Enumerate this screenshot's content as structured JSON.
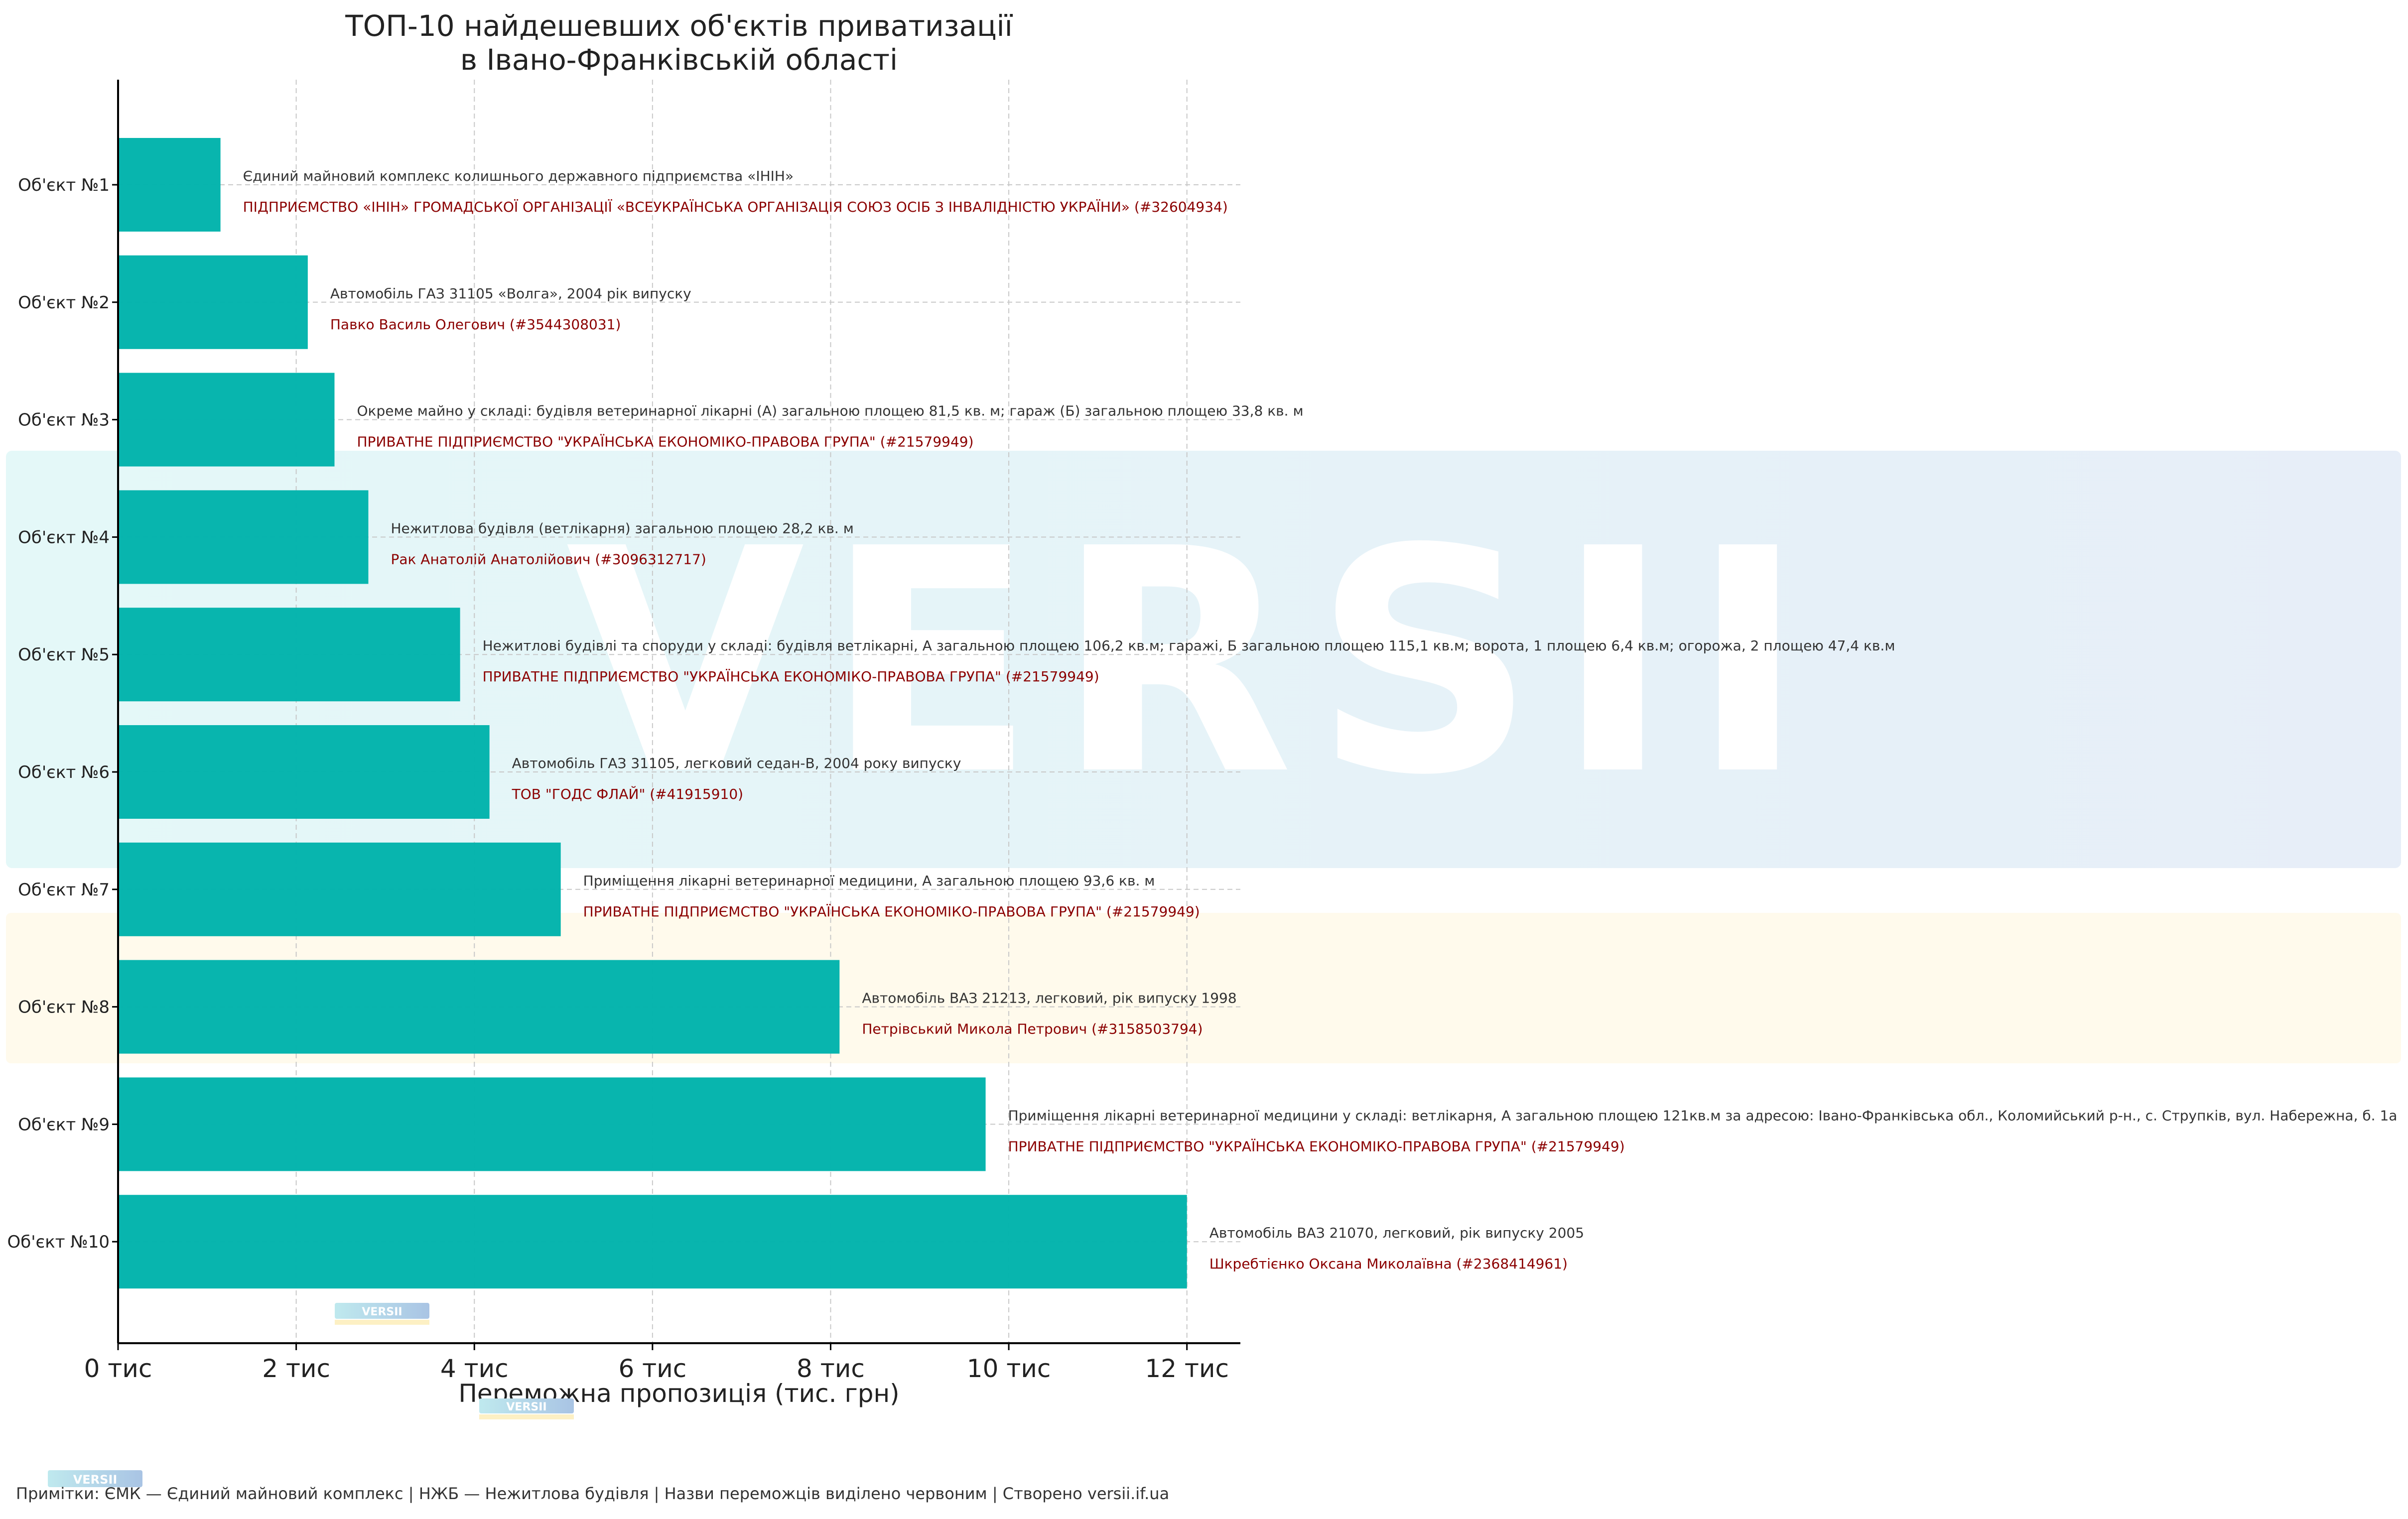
{
  "chart_data": {
    "type": "bar",
    "orientation": "horizontal",
    "title": "ТОП-10 найдешевших об'єктів приватизації\nв Івано-Франківській області",
    "xlabel": "Переможна пропозиція (тис. грн)",
    "ylabel": "",
    "xlim": [
      0,
      12600
    ],
    "x_ticks": [
      0,
      2000,
      4000,
      6000,
      8000,
      10000,
      12000
    ],
    "x_tick_labels": [
      "0 тис",
      "2 тис",
      "4 тис",
      "6 тис",
      "8 тис",
      "10 тис",
      "12 тис"
    ],
    "categories": [
      "Об'єкт №1",
      "Об'єкт №2",
      "Об'єкт №3",
      "Об'єкт №4",
      "Об'єкт №5",
      "Об'єкт №6",
      "Об'єкт №7",
      "Об'єкт №8",
      "Об'єкт №9",
      "Об'єкт №10"
    ],
    "values": [
      1150,
      2130,
      2430,
      2810,
      3840,
      4170,
      4970,
      8100,
      9740,
      12000
    ],
    "descriptions": [
      "Єдиний майновий комплекс колишнього державного підприємства «ІНІН»",
      "Автомобіль ГАЗ 31105 «Волга», 2004 рік випуску",
      "Окреме майно у складі: будівля ветеринарної лікарні (А) загальною площею 81,5 кв. м; гараж (Б) загальною площею 33,8 кв. м",
      "Нежитлова будівля (ветлікарня) загальною площею 28,2 кв. м",
      "Нежитлові будівлі та споруди у складі: будівля ветлікарні, А загальною площею 106,2 кв.м; гаражі, Б загальною площею 115,1 кв.м; ворота, 1 площею 6,4 кв.м; огорожа, 2 площею 47,4 кв.м",
      "Автомобіль ГАЗ 31105, легковий седан-В, 2004 року випуску",
      "Приміщення лікарні ветеринарної медицини, А загальною площею 93,6 кв. м",
      "Автомобіль ВАЗ 21213, легковий, рік випуску 1998",
      "Приміщення лікарні ветеринарної медицини у складі: ветлікарня, А загальною площею 121кв.м за адресою: Івано-Франківська обл., Коломийський р-н., с. Струпків, вул. Набережна, б. 1а",
      "Автомобіль ВАЗ 21070, легковий, рік випуску 2005"
    ],
    "winners": [
      "ПІДПРИЄМСТВО «ІНІН» ГРОМАДСЬКОЇ ОРГАНІЗАЦІЇ «ВСЕУКРАЇНСЬКА ОРГАНІЗАЦІЯ СОЮЗ ОСІБ З ІНВАЛІДНІСТЮ УКРАЇНИ» (#32604934)",
      "Павко Василь Олегович (#3544308031)",
      "ПРИВАТНЕ ПІДПРИЄМСТВО \"УКРАЇНСЬКА ЕКОНОМІКО-ПРАВОВА ГРУПА\" (#21579949)",
      "Рак Анатолій Анатолійович (#3096312717)",
      "ПРИВАТНЕ ПІДПРИЄМСТВО \"УКРАЇНСЬКА ЕКОНОМІКО-ПРАВОВА ГРУПА\" (#21579949)",
      "ТОВ \"ГОДС ФЛАЙ\" (#41915910)",
      "ПРИВАТНЕ ПІДПРИЄМСТВО \"УКРАЇНСЬКА ЕКОНОМІКО-ПРАВОВА ГРУПА\" (#21579949)",
      "Петрівський Микола Петрович (#3158503794)",
      "ПРИВАТНЕ ПІДПРИЄМСТВО \"УКРАЇНСЬКА ЕКОНОМІКО-ПРАВОВА ГРУПА\" (#21579949)",
      "Шкребтієнко Оксана Миколаївна (#2368414961)"
    ],
    "grid": true,
    "legend": "none",
    "colors": {
      "bar": "#00b3ab",
      "winner_text": "#8b0000",
      "description_text": "#333333",
      "grid": "#c8c8c8"
    }
  },
  "watermark": {
    "text": "VERSII",
    "colors": {
      "left": "#e6f8f8",
      "right": "#e8eef8",
      "band": "#fff8e6"
    }
  },
  "footer": {
    "note": "Примітки: ЄМК — Єдиний майновий комплекс | НЖБ — Нежитлова будівля | Назви переможців виділено червоним | Створено versii.if.ua"
  }
}
